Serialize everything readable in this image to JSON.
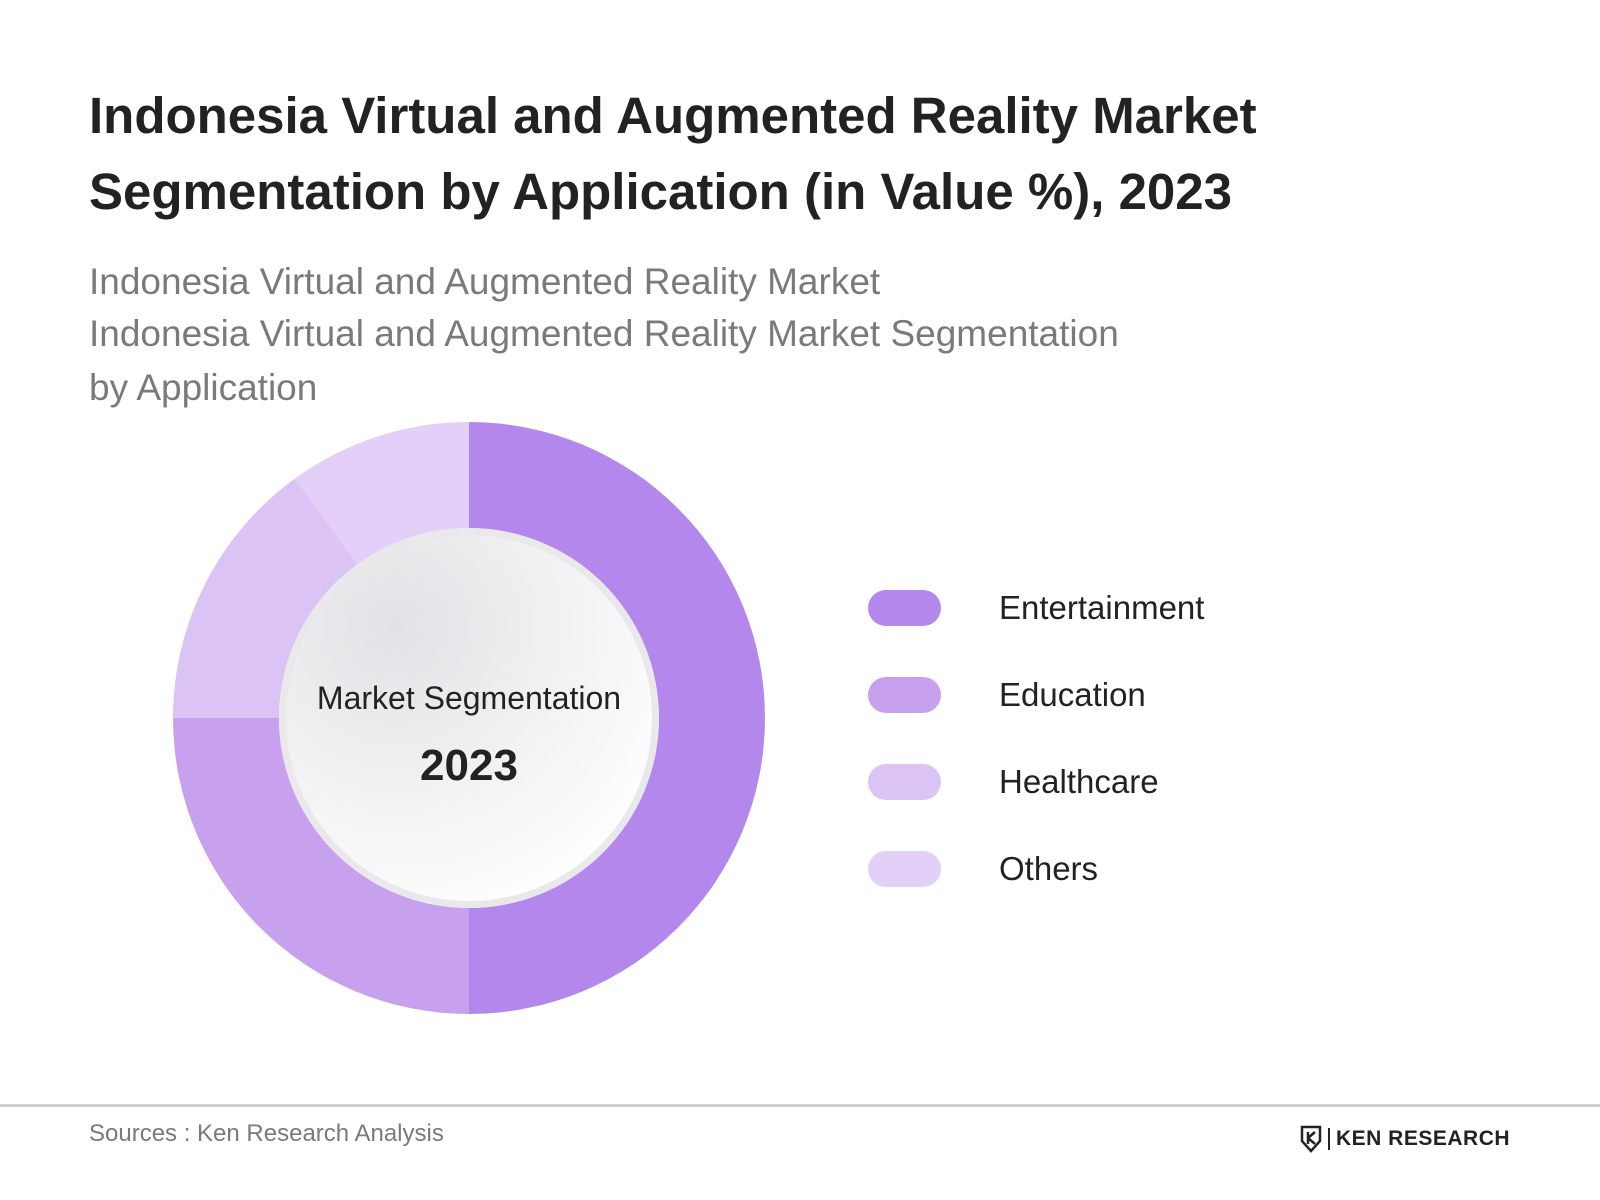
{
  "title": {
    "line1": "Indonesia Virtual and Augmented Reality Market",
    "line2": "Segmentation by Application (in Value %), 2023"
  },
  "subtitle": {
    "line1": "Indonesia Virtual and Augmented Reality Market",
    "line2": "Indonesia Virtual and Augmented Reality Market Segmentation",
    "line3": "by Application"
  },
  "chart_data": {
    "type": "pie",
    "variant": "donut",
    "center_label": "Market Segmentation",
    "center_value": "2023",
    "categories": [
      "Entertainment",
      "Education",
      "Healthcare",
      "Others"
    ],
    "values": [
      50,
      25,
      15,
      10
    ],
    "colors": [
      "#b487ec",
      "#c7a0ee",
      "#dcc3f6",
      "#e3cff8"
    ],
    "legend_position": "right"
  },
  "legend": {
    "items": [
      {
        "label": "Entertainment",
        "color": "#b487ec"
      },
      {
        "label": "Education",
        "color": "#c7a0ee"
      },
      {
        "label": "Healthcare",
        "color": "#dcc3f6"
      },
      {
        "label": "Others",
        "color": "#e3cff8"
      }
    ]
  },
  "footer": {
    "sources": "Sources : Ken Research Analysis",
    "brand": "KEN RESEARCH"
  }
}
